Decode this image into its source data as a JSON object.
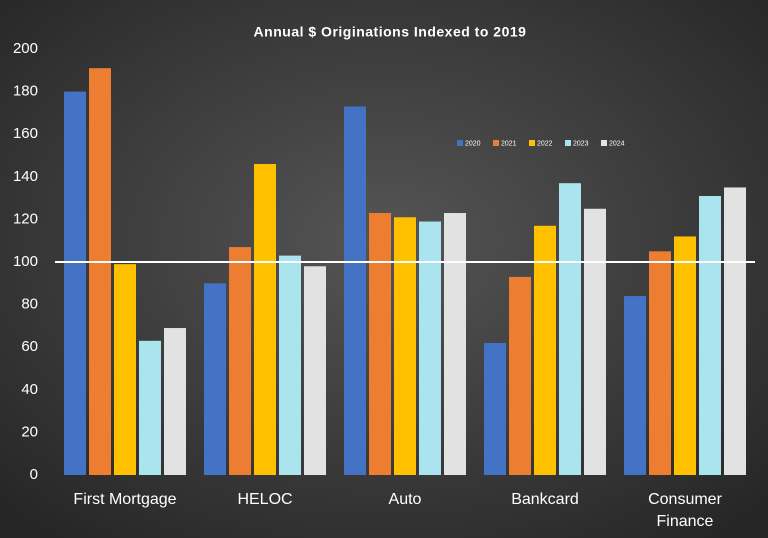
{
  "chart_data": {
    "type": "bar",
    "title": "Annual $ Originations Indexed to 2019",
    "categories": [
      "First Mortgage",
      "HELOC",
      "Auto",
      "Bankcard",
      "Consumer Finance"
    ],
    "series": [
      {
        "name": "2020",
        "color": "#4472c4",
        "values": [
          180,
          90,
          173,
          62,
          84
        ]
      },
      {
        "name": "2021",
        "color": "#ed7d31",
        "values": [
          191,
          107,
          123,
          93,
          105
        ]
      },
      {
        "name": "2022",
        "color": "#ffc000",
        "values": [
          99,
          146,
          121,
          117,
          112
        ]
      },
      {
        "name": "2023",
        "color": "#a9e4ef",
        "values": [
          63,
          103,
          119,
          137,
          131
        ]
      },
      {
        "name": "2024",
        "color": "#e2e2e2",
        "values": [
          69,
          98,
          123,
          125,
          135
        ]
      }
    ],
    "ylim": [
      0,
      200
    ],
    "yticks": [
      0,
      20,
      40,
      60,
      80,
      100,
      120,
      140,
      160,
      180,
      200
    ],
    "reference_line": 100
  }
}
